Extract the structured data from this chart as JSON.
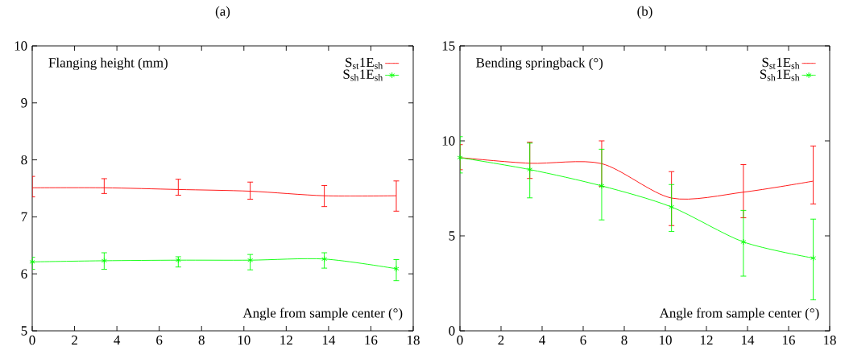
{
  "chart_data": [
    {
      "type": "line",
      "title": "(a)",
      "xlabel": "Angle from sample center (°)",
      "ylabel": "Flanging height (mm)",
      "xlim": [
        0,
        18
      ],
      "ylim": [
        5,
        10
      ],
      "xticks": [
        0,
        2,
        4,
        6,
        8,
        10,
        12,
        14,
        16,
        18
      ],
      "yticks": [
        5,
        6,
        7,
        8,
        9,
        10
      ],
      "legend": "top right",
      "series": [
        {
          "name": "S$_{st}$1E$_{sh}$",
          "color": "#ff0000",
          "marker": "none",
          "x": [
            0,
            3.4,
            6.9,
            10.3,
            13.8,
            17.2
          ],
          "values": [
            7.51,
            7.51,
            7.48,
            7.45,
            7.37,
            7.37
          ],
          "errors": [
            [
              7.35,
              7.71
            ],
            [
              7.41,
              7.67
            ],
            [
              7.38,
              7.66
            ],
            [
              7.31,
              7.61
            ],
            [
              7.18,
              7.55
            ],
            [
              7.1,
              7.63
            ]
          ]
        },
        {
          "name": "S$_{sh}$1E$_{sh}$",
          "color": "#00ff00",
          "marker": "cross",
          "x": [
            0,
            3.4,
            6.9,
            10.3,
            13.8,
            17.2
          ],
          "values": [
            6.21,
            6.23,
            6.24,
            6.24,
            6.26,
            6.09
          ],
          "errors": [
            [
              6.08,
              6.29
            ],
            [
              6.08,
              6.37
            ],
            [
              6.12,
              6.3
            ],
            [
              6.07,
              6.34
            ],
            [
              6.1,
              6.37
            ],
            [
              5.88,
              6.25
            ]
          ]
        }
      ]
    },
    {
      "type": "line",
      "title": "(b)",
      "xlabel": "Angle from sample center (°)",
      "ylabel": "Bending springback (°)",
      "xlim": [
        0,
        18
      ],
      "ylim": [
        0,
        15
      ],
      "xticks": [
        0,
        2,
        4,
        6,
        8,
        10,
        12,
        14,
        16,
        18
      ],
      "yticks": [
        0,
        5,
        10,
        15
      ],
      "legend": "top right",
      "series": [
        {
          "name": "S$_{st}$1E$_{sh}$",
          "color": "#ff0000",
          "marker": "none",
          "x": [
            0,
            3.4,
            6.9,
            10.3,
            13.8,
            17.2
          ],
          "values": [
            9.12,
            8.82,
            8.8,
            6.99,
            7.3,
            7.88
          ],
          "errors": [
            [
              8.48,
              9.8
            ],
            [
              8.02,
              9.93
            ],
            [
              7.6,
              10.0
            ],
            [
              5.54,
              8.38
            ],
            [
              5.95,
              8.75
            ],
            [
              6.68,
              9.73
            ]
          ]
        },
        {
          "name": "S$_{sh}$1E$_{sh}$",
          "color": "#00ff00",
          "marker": "cross",
          "x": [
            0,
            3.4,
            6.9,
            10.3,
            13.8,
            17.2
          ],
          "values": [
            9.12,
            8.49,
            7.63,
            6.52,
            4.68,
            3.83
          ],
          "errors": [
            [
              8.31,
              10.22
            ],
            [
              7.0,
              9.88
            ],
            [
              5.84,
              9.56
            ],
            [
              5.23,
              7.7
            ],
            [
              2.88,
              6.34
            ],
            [
              1.63,
              5.88
            ]
          ]
        }
      ]
    }
  ]
}
